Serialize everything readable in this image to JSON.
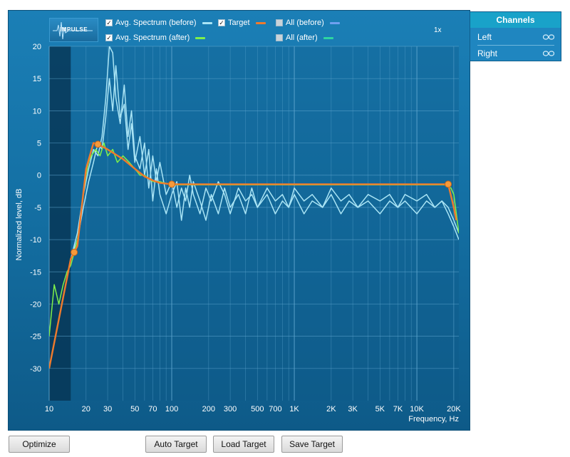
{
  "legend": {
    "avg_before": {
      "label": "Avg. Spectrum (before)",
      "checked": true,
      "color": "#a9e4f5"
    },
    "target": {
      "label": "Target",
      "checked": true,
      "color": "#f07a2c"
    },
    "all_before": {
      "label": "All (before)",
      "checked": false,
      "color": "#6fa0f0"
    },
    "avg_after": {
      "label": "Avg. Spectrum (after)",
      "checked": true,
      "color": "#7ef04a"
    },
    "all_after": {
      "label": "All (after)",
      "checked": false,
      "color": "#2ed6a0"
    }
  },
  "logo_text": "IMPULSE",
  "zoom_label": "1x",
  "channels": {
    "title": "Channels",
    "items": [
      {
        "label": "Left",
        "icon": "link-icon"
      },
      {
        "label": "Right",
        "icon": "link-icon"
      }
    ]
  },
  "buttons": {
    "optimize": "Optimize",
    "auto_target": "Auto Target",
    "load_target": "Load Target",
    "save_target": "Save Target"
  },
  "chart_data": {
    "type": "line",
    "xlabel": "Frequency, Hz",
    "ylabel": "Normalized level, dB",
    "xscale": "log",
    "xlim": [
      10,
      22000
    ],
    "ylim": [
      -35,
      20
    ],
    "x_ticks": [
      {
        "value": 10,
        "label": "10"
      },
      {
        "value": 20,
        "label": "20"
      },
      {
        "value": 30,
        "label": "30"
      },
      {
        "value": 50,
        "label": "50"
      },
      {
        "value": 70,
        "label": "70"
      },
      {
        "value": 100,
        "label": "100"
      },
      {
        "value": 200,
        "label": "200"
      },
      {
        "value": 300,
        "label": "300"
      },
      {
        "value": 500,
        "label": "500"
      },
      {
        "value": 700,
        "label": "700"
      },
      {
        "value": 1000,
        "label": "1K"
      },
      {
        "value": 2000,
        "label": "2K"
      },
      {
        "value": 3000,
        "label": "3K"
      },
      {
        "value": 5000,
        "label": "5K"
      },
      {
        "value": 7000,
        "label": "7K"
      },
      {
        "value": 10000,
        "label": "10K"
      },
      {
        "value": 20000,
        "label": "20K"
      }
    ],
    "y_ticks": [
      20,
      15,
      10,
      5,
      0,
      -5,
      -10,
      -15,
      -20,
      -25,
      -30
    ],
    "grid": true,
    "excluded_band_hz": [
      10,
      15
    ],
    "series": [
      {
        "name": "Avg. Spectrum (before)",
        "color": "#a9e4f5",
        "x": [
          15,
          17,
          19,
          21,
          23,
          25,
          27,
          29,
          31,
          33,
          35,
          38,
          41,
          44,
          47,
          50,
          55,
          60,
          65,
          70,
          75,
          80,
          90,
          100,
          110,
          120,
          130,
          140,
          150,
          170,
          190,
          210,
          240,
          270,
          300,
          350,
          400,
          450,
          500,
          600,
          700,
          800,
          900,
          1000,
          1200,
          1400,
          1700,
          2000,
          2400,
          2800,
          3300,
          4000,
          5000,
          6000,
          7000,
          8000,
          10000,
          12000,
          14000,
          16000,
          18000,
          20000,
          22000
        ],
        "y": [
          -13,
          -9,
          -3,
          1,
          4,
          3,
          6,
          12,
          20,
          19,
          12,
          8,
          14,
          6,
          10,
          3,
          1,
          5,
          -2,
          3,
          -1,
          2,
          -3,
          -1,
          -5,
          -2,
          -4,
          0,
          -3,
          -6,
          -2,
          -4,
          -1,
          -3,
          -6,
          -2,
          -4,
          -3,
          -5,
          -2,
          -4,
          -3,
          -5,
          -2,
          -4,
          -3,
          -5,
          -2,
          -4,
          -3,
          -5,
          -3,
          -4,
          -3,
          -5,
          -3,
          -4,
          -3,
          -5,
          -4,
          -5,
          -7,
          -9
        ]
      },
      {
        "name": "Avg. Spectrum (before)",
        "color": "#a9e4f5",
        "x": [
          15,
          17,
          19,
          21,
          23,
          25,
          27,
          29,
          31,
          33,
          35,
          38,
          41,
          44,
          47,
          50,
          55,
          60,
          65,
          70,
          75,
          80,
          90,
          100,
          110,
          120,
          130,
          140,
          150,
          170,
          190,
          210,
          240,
          270,
          300,
          350,
          400,
          450,
          500,
          600,
          700,
          800,
          900,
          1000,
          1200,
          1400,
          1700,
          2000,
          2400,
          2800,
          3300,
          4000,
          5000,
          6000,
          7000,
          8000,
          10000,
          12000,
          14000,
          16000,
          18000,
          20000,
          22000
        ],
        "y": [
          -13,
          -10,
          -5,
          -1,
          2,
          5,
          4,
          9,
          15,
          10,
          17,
          9,
          11,
          4,
          8,
          2,
          6,
          0,
          4,
          -4,
          1,
          -3,
          -6,
          -3,
          -1,
          -7,
          -2,
          -5,
          -1,
          -4,
          -7,
          -3,
          -6,
          -2,
          -5,
          -3,
          -6,
          -2,
          -5,
          -3,
          -6,
          -4,
          -5,
          -3,
          -6,
          -4,
          -5,
          -3,
          -6,
          -4,
          -5,
          -4,
          -6,
          -4,
          -5,
          -4,
          -6,
          -4,
          -5,
          -4,
          -6,
          -8,
          -10
        ]
      },
      {
        "name": "Avg. Spectrum (after)",
        "color": "#7ef04a",
        "x": [
          10,
          11,
          12,
          13,
          14,
          15,
          16,
          17,
          18,
          19,
          20,
          21,
          22,
          24,
          26,
          28,
          30,
          33,
          36,
          40,
          45,
          50,
          55,
          60,
          70,
          80,
          100,
          120,
          150,
          200,
          300,
          500,
          700,
          1000,
          2000,
          3000,
          5000,
          7000,
          10000,
          14000,
          17000,
          19000,
          20000,
          21000,
          22000
        ],
        "y": [
          -25,
          -17,
          -20,
          -17,
          -15,
          -14,
          -12,
          -10,
          -7,
          -3,
          0,
          2,
          3,
          4,
          3,
          5,
          3,
          4,
          2,
          3,
          2,
          1,
          0,
          0,
          -1,
          -1,
          -1.5,
          -1.5,
          -1.5,
          -1.5,
          -1.5,
          -1.5,
          -1.5,
          -1.5,
          -1.5,
          -1.5,
          -1.5,
          -1.5,
          -1.5,
          -1.5,
          -1.5,
          -2,
          -3,
          -6,
          -9
        ]
      },
      {
        "name": "Target",
        "color": "#f07a2c",
        "x": [
          10,
          15,
          17,
          20,
          23,
          25,
          30,
          40,
          50,
          60,
          70,
          80,
          100,
          200,
          500,
          1000,
          2000,
          5000,
          10000,
          18000,
          20000,
          21000
        ],
        "y": [
          -30,
          -13,
          -11,
          1,
          5,
          4.8,
          4,
          2.5,
          1,
          -0.2,
          -0.8,
          -1.2,
          -1.4,
          -1.4,
          -1.4,
          -1.4,
          -1.4,
          -1.4,
          -1.4,
          -1.4,
          -5,
          -7
        ],
        "handles_x": [
          16,
          25,
          100,
          18000
        ]
      }
    ]
  }
}
